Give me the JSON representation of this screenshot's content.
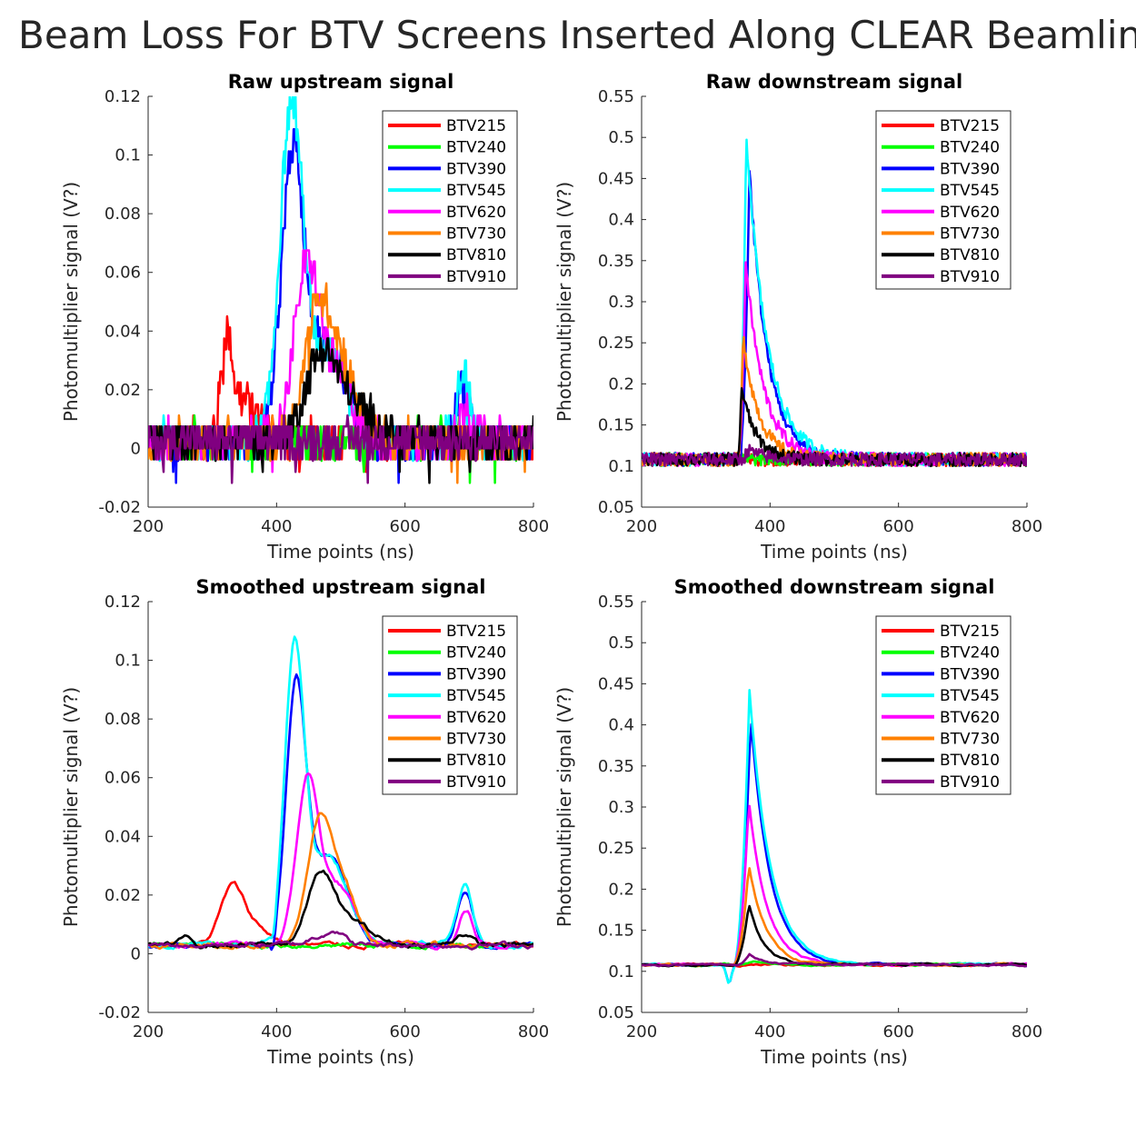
{
  "figure_title": "Beam Loss For BTV Screens Inserted Along CLEAR Beamlin",
  "legend_names": [
    "BTV215",
    "BTV240",
    "BTV390",
    "BTV545",
    "BTV620",
    "BTV730",
    "BTV810",
    "BTV910"
  ],
  "colors": {
    "BTV215": "#ff0000",
    "BTV240": "#00ff00",
    "BTV390": "#0000ff",
    "BTV545": "#00ffff",
    "BTV620": "#ff00ff",
    "BTV730": "#ff8000",
    "BTV810": "#000000",
    "BTV910": "#800080"
  },
  "chart_data": [
    {
      "type": "line",
      "title": "Raw upstream signal",
      "xlabel": "Time points (ns)",
      "ylabel": "Photomultiplier signal (V?)",
      "xlim": [
        200,
        800
      ],
      "ylim": [
        -0.02,
        0.12
      ],
      "xticks": [
        "200",
        "400",
        "600",
        "800"
      ],
      "yticks": [
        "-0.02",
        "0",
        "0.02",
        "0.04",
        "0.06",
        "0.08",
        "0.1",
        "0.12"
      ],
      "legend_position": "top-right",
      "noisy": true,
      "baseline": 0.003,
      "series": [
        {
          "name": "BTV215",
          "peaks": [
            {
              "x": 322,
              "y": 0.028,
              "w": 8
            },
            {
              "x": 345,
              "y": 0.014,
              "w": 25
            }
          ]
        },
        {
          "name": "BTV240",
          "peaks": []
        },
        {
          "name": "BTV390",
          "peaks": [
            {
              "x": 425,
              "y": 0.095,
              "w": 18
            },
            {
              "x": 480,
              "y": 0.03,
              "w": 30
            },
            {
              "x": 690,
              "y": 0.018,
              "w": 10
            }
          ]
        },
        {
          "name": "BTV545",
          "peaks": [
            {
              "x": 423,
              "y": 0.11,
              "w": 18
            },
            {
              "x": 480,
              "y": 0.03,
              "w": 30
            },
            {
              "x": 690,
              "y": 0.024,
              "w": 10
            }
          ]
        },
        {
          "name": "BTV620",
          "peaks": [
            {
              "x": 447,
              "y": 0.058,
              "w": 20
            },
            {
              "x": 495,
              "y": 0.02,
              "w": 25
            },
            {
              "x": 695,
              "y": 0.012,
              "w": 10
            }
          ]
        },
        {
          "name": "BTV730",
          "peaks": [
            {
              "x": 465,
              "y": 0.042,
              "w": 22
            },
            {
              "x": 505,
              "y": 0.02,
              "w": 25
            }
          ]
        },
        {
          "name": "BTV810",
          "peaks": [
            {
              "x": 470,
              "y": 0.027,
              "w": 25
            },
            {
              "x": 520,
              "y": 0.01,
              "w": 35
            }
          ]
        },
        {
          "name": "BTV910",
          "peaks": []
        }
      ]
    },
    {
      "type": "line",
      "title": "Raw downstream signal",
      "xlabel": "Time points (ns)",
      "ylabel": "Photomultiplier signal (V?)",
      "xlim": [
        200,
        800
      ],
      "ylim": [
        0.05,
        0.55
      ],
      "xticks": [
        "200",
        "400",
        "600",
        "800"
      ],
      "yticks": [
        "0.05",
        "0.1",
        "0.15",
        "0.2",
        "0.25",
        "0.3",
        "0.35",
        "0.4",
        "0.45",
        "0.5",
        "0.55"
      ],
      "legend_position": "top-right",
      "noisy": true,
      "baseline": 0.108,
      "series": [
        {
          "name": "BTV215",
          "spike": null
        },
        {
          "name": "BTV240",
          "spike": null
        },
        {
          "name": "BTV390",
          "spike": {
            "x0": 352,
            "peak_x": 368,
            "peak": 0.46,
            "tau": 28
          }
        },
        {
          "name": "BTV545",
          "spike": {
            "x0": 350,
            "peak_x": 363,
            "peak": 0.505,
            "tau": 32
          }
        },
        {
          "name": "BTV620",
          "spike": {
            "x0": 350,
            "peak_x": 362,
            "peak": 0.35,
            "tau": 28
          }
        },
        {
          "name": "BTV730",
          "spike": {
            "x0": 350,
            "peak_x": 358,
            "peak": 0.258,
            "tau": 25
          }
        },
        {
          "name": "BTV810",
          "spike": {
            "x0": 350,
            "peak_x": 355,
            "peak": 0.198,
            "tau": 22
          }
        },
        {
          "name": "BTV910",
          "spike": {
            "x0": 355,
            "peak_x": 365,
            "peak": 0.12,
            "tau": 25
          }
        }
      ]
    },
    {
      "type": "line",
      "title": "Smoothed upstream signal",
      "xlabel": "Time points (ns)",
      "ylabel": "Photomultiplier signal (V?)",
      "xlim": [
        200,
        800
      ],
      "ylim": [
        -0.02,
        0.12
      ],
      "xticks": [
        "200",
        "400",
        "600",
        "800"
      ],
      "yticks": [
        "-0.02",
        "0",
        "0.02",
        "0.04",
        "0.06",
        "0.08",
        "0.1",
        "0.12"
      ],
      "legend_position": "top-right",
      "noisy": false,
      "baseline": 0.003,
      "series": [
        {
          "name": "BTV215",
          "peaks": [
            {
              "x": 330,
              "y": 0.018,
              "w": 18
            },
            {
              "x": 365,
              "y": 0.006,
              "w": 25
            }
          ]
        },
        {
          "name": "BTV240",
          "peaks": []
        },
        {
          "name": "BTV390",
          "dip": {
            "x": 395,
            "y": -0.006,
            "w": 4
          },
          "peaks": [
            {
              "x": 430,
              "y": 0.085,
              "w": 15
            },
            {
              "x": 480,
              "y": 0.03,
              "w": 30
            },
            {
              "x": 693,
              "y": 0.019,
              "w": 12
            }
          ]
        },
        {
          "name": "BTV545",
          "dip": {
            "x": 395,
            "y": -0.006,
            "w": 4
          },
          "peaks": [
            {
              "x": 428,
              "y": 0.098,
              "w": 15
            },
            {
              "x": 480,
              "y": 0.03,
              "w": 30
            },
            {
              "x": 693,
              "y": 0.02,
              "w": 12
            }
          ]
        },
        {
          "name": "BTV620",
          "peaks": [
            {
              "x": 448,
              "y": 0.055,
              "w": 17
            },
            {
              "x": 495,
              "y": 0.02,
              "w": 25
            },
            {
              "x": 695,
              "y": 0.012,
              "w": 10
            }
          ]
        },
        {
          "name": "BTV730",
          "peaks": [
            {
              "x": 465,
              "y": 0.037,
              "w": 18
            },
            {
              "x": 500,
              "y": 0.022,
              "w": 22
            }
          ]
        },
        {
          "name": "BTV810",
          "peaks": [
            {
              "x": 468,
              "y": 0.023,
              "w": 20
            },
            {
              "x": 515,
              "y": 0.008,
              "w": 30
            },
            {
              "x": 690,
              "y": 0.004,
              "w": 12
            },
            {
              "x": 262,
              "y": 0.003,
              "w": 8
            }
          ]
        },
        {
          "name": "BTV910",
          "peaks": [
            {
              "x": 490,
              "y": 0.005,
              "w": 15
            },
            {
              "x": 460,
              "y": 0.002,
              "w": 15
            }
          ]
        }
      ]
    },
    {
      "type": "line",
      "title": "Smoothed downstream signal",
      "xlabel": "Time points (ns)",
      "ylabel": "Photomultiplier signal (V?)",
      "xlim": [
        200,
        800
      ],
      "ylim": [
        0.05,
        0.55
      ],
      "xticks": [
        "200",
        "400",
        "600",
        "800"
      ],
      "yticks": [
        "0.05",
        "0.1",
        "0.15",
        "0.2",
        "0.25",
        "0.3",
        "0.35",
        "0.4",
        "0.45",
        "0.5",
        "0.55"
      ],
      "legend_position": "top-right",
      "noisy": false,
      "baseline": 0.108,
      "series": [
        {
          "name": "BTV215",
          "spike": null
        },
        {
          "name": "BTV240",
          "spike": {
            "x0": 350,
            "peak_x": 375,
            "peak": 0.113,
            "tau": 30
          }
        },
        {
          "name": "BTV390",
          "spike": {
            "x0": 343,
            "peak_x": 370,
            "peak": 0.41,
            "tau": 30
          },
          "dip": true
        },
        {
          "name": "BTV545",
          "spike": {
            "x0": 343,
            "peak_x": 368,
            "peak": 0.444,
            "tau": 32
          },
          "dip": true
        },
        {
          "name": "BTV620",
          "spike": {
            "x0": 343,
            "peak_x": 367,
            "peak": 0.308,
            "tau": 28
          }
        },
        {
          "name": "BTV730",
          "spike": {
            "x0": 343,
            "peak_x": 367,
            "peak": 0.232,
            "tau": 26
          }
        },
        {
          "name": "BTV810",
          "spike": {
            "x0": 343,
            "peak_x": 367,
            "peak": 0.182,
            "tau": 22
          }
        },
        {
          "name": "BTV910",
          "spike": {
            "x0": 345,
            "peak_x": 368,
            "peak": 0.12,
            "tau": 25
          }
        }
      ]
    }
  ]
}
